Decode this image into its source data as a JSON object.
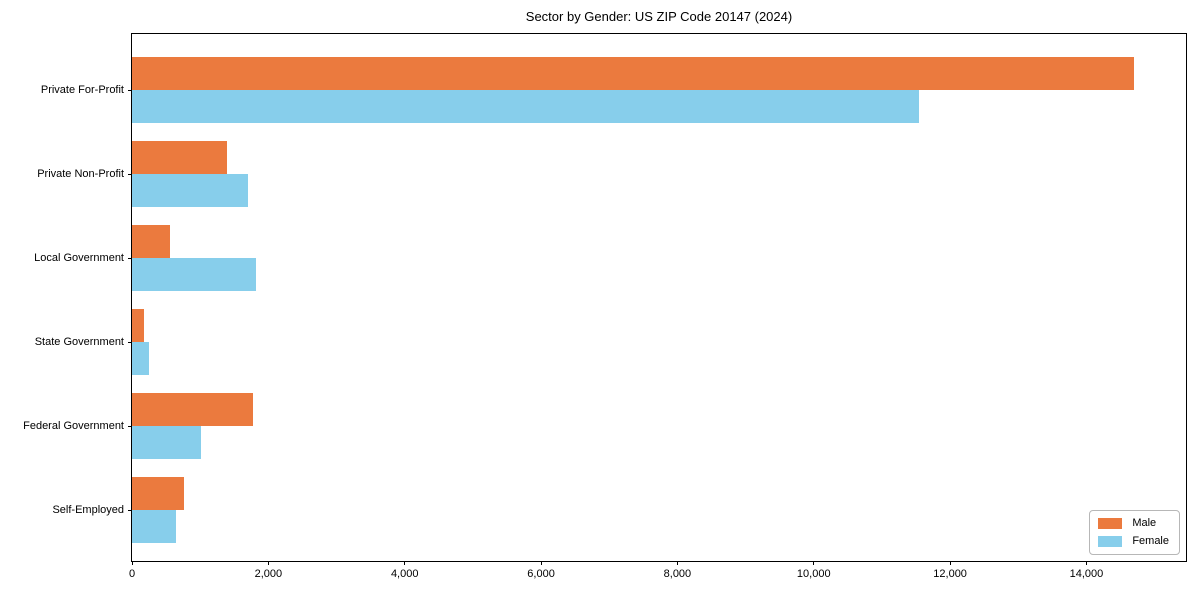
{
  "chart_data": {
    "type": "bar",
    "orientation": "horizontal",
    "title": "Sector by Gender: US ZIP Code 20147 (2024)",
    "xlabel": "",
    "ylabel": "",
    "categories": [
      "Private For-Profit",
      "Private Non-Profit",
      "Local Government",
      "State Government",
      "Federal Government",
      "Self-Employed"
    ],
    "series": [
      {
        "name": "Male",
        "color": "#EB7A3E",
        "values": [
          14700,
          1390,
          560,
          180,
          1780,
          765
        ]
      },
      {
        "name": "Female",
        "color": "#87CEEB",
        "values": [
          11550,
          1700,
          1820,
          250,
          1015,
          645
        ]
      }
    ],
    "xlim": [
      0,
      15460
    ],
    "x_ticks": [
      0,
      2000,
      4000,
      6000,
      8000,
      10000,
      12000,
      14000
    ],
    "x_tick_labels": [
      "0",
      "2,000",
      "4,000",
      "6,000",
      "8,000",
      "10,000",
      "12,000",
      "14,000"
    ],
    "legend_position": "lower right",
    "grid": false
  }
}
